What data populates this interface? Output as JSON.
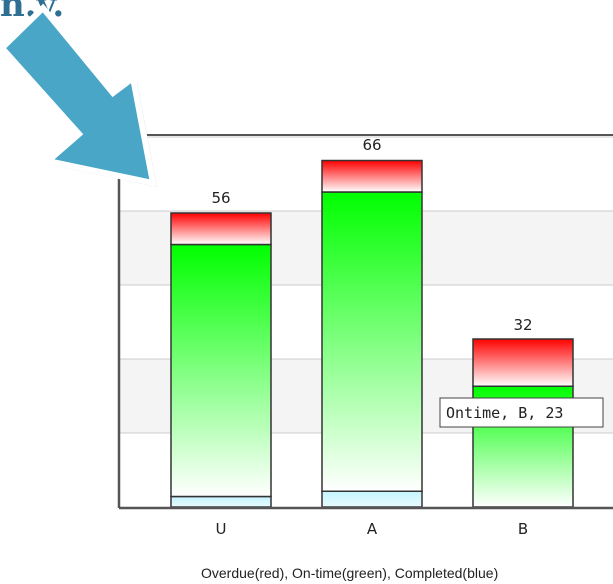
{
  "top_text": "n.y.",
  "colors": {
    "overdue": "#ff0000",
    "ontime": "#00ff00",
    "completed": "#ccf6ff",
    "arrow": "#4aa6c6",
    "top_text": "#2e6f93"
  },
  "chart_data": {
    "type": "bar",
    "stacked": true,
    "categories": [
      "U",
      "A",
      "B"
    ],
    "series": [
      {
        "name": "Completed",
        "values": [
          2,
          3,
          0
        ]
      },
      {
        "name": "Ontime",
        "values": [
          48,
          57,
          23
        ]
      },
      {
        "name": "Overdue",
        "values": [
          6,
          6,
          9
        ]
      }
    ],
    "totals": [
      "56",
      "66",
      "32"
    ],
    "caption": "Overdue(red), On-time(green), Completed(blue)",
    "ylim": [
      0,
      65
    ],
    "grid": true,
    "tooltip": {
      "text": "Ontime, B, 23",
      "category": "B",
      "series": "Ontime"
    }
  }
}
